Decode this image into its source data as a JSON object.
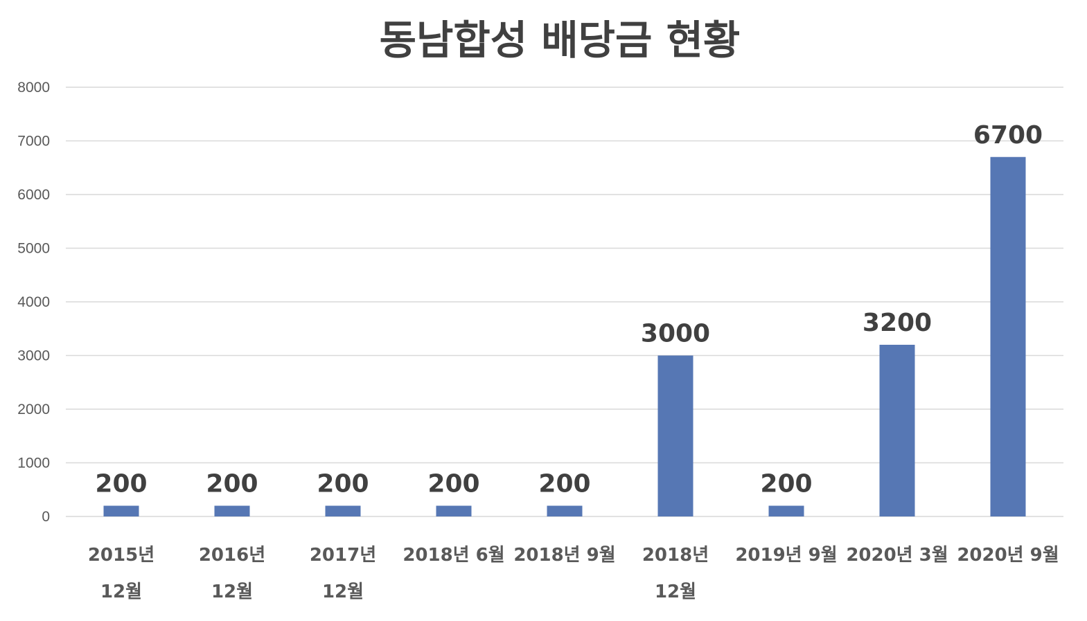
{
  "chart_data": {
    "type": "bar",
    "title": "동남합성 배당금 현황",
    "categories": [
      [
        "2015년",
        "12월"
      ],
      [
        "2016년",
        "12월"
      ],
      [
        "2017년",
        "12월"
      ],
      [
        "2018년 6월"
      ],
      [
        "2018년 9월"
      ],
      [
        "2018년",
        "12월"
      ],
      [
        "2019년 9월"
      ],
      [
        "2020년 3월"
      ],
      [
        "2020년 9월"
      ]
    ],
    "values": [
      200,
      200,
      200,
      200,
      200,
      3000,
      200,
      3200,
      6700
    ],
    "data_labels": [
      "200",
      "200",
      "200",
      "200",
      "200",
      "3000",
      "200",
      "3200",
      "6700"
    ],
    "ylim": [
      0,
      8000
    ],
    "yticks": [
      "0",
      "1000",
      "2000",
      "3000",
      "4000",
      "5000",
      "6000",
      "7000",
      "8000"
    ],
    "grid": true,
    "legend": "none",
    "colors": {
      "bar": "#5677b4",
      "title": "#404040",
      "tick": "#595959",
      "data_label": "#404040",
      "grid": "#d9d9d9"
    }
  }
}
